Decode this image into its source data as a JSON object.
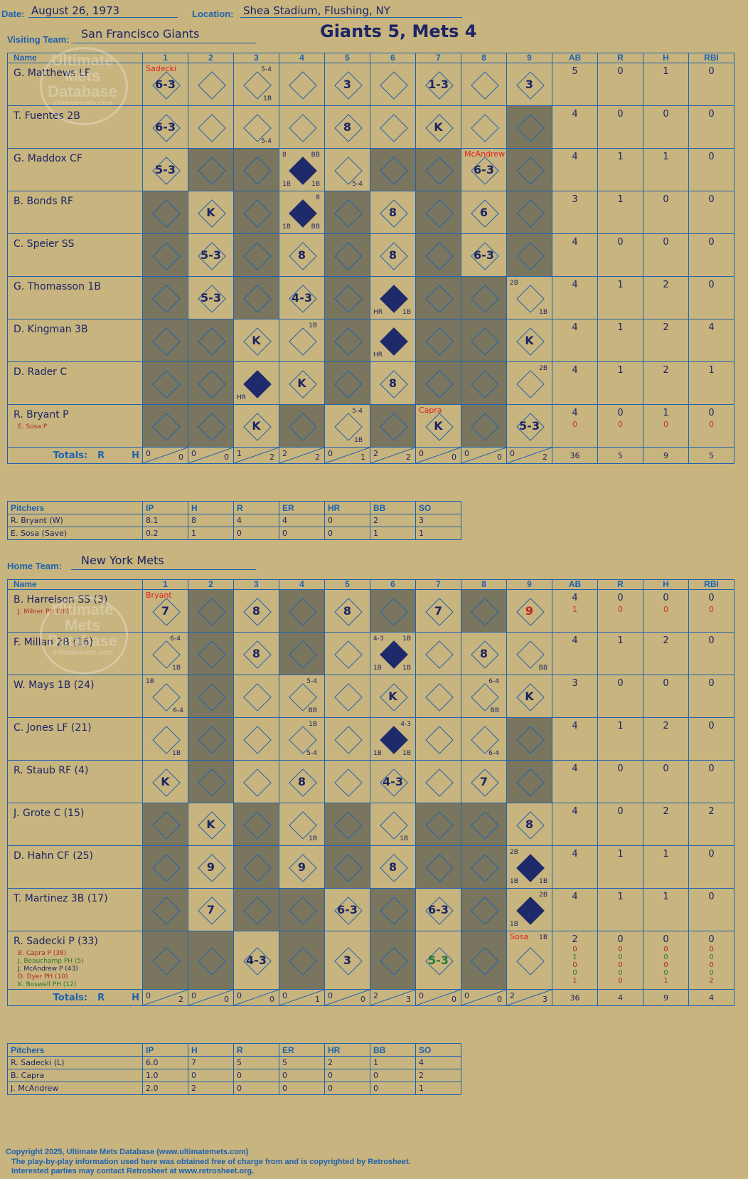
{
  "header": {
    "date_label": "Date:",
    "date": "August 26, 1973",
    "location_label": "Location:",
    "location": "Shea Stadium, Flushing, NY",
    "final_score": "Giants 5, Mets 4"
  },
  "watermark": {
    "line1": "Ultimate",
    "line2": "Mets",
    "line3": "Database",
    "url": "ultimatemets.com"
  },
  "columns": {
    "name": "Name",
    "innings": [
      "1",
      "2",
      "3",
      "4",
      "5",
      "6",
      "7",
      "8",
      "9"
    ],
    "stats": [
      "AB",
      "R",
      "H",
      "RBI"
    ]
  },
  "totals_label": "Totals:",
  "rh": {
    "r": "R",
    "h": "H"
  },
  "pitchers_header": [
    "Pitchers",
    "IP",
    "H",
    "R",
    "ER",
    "HR",
    "BB",
    "SO"
  ],
  "visitors": {
    "label": "Visiting Team:",
    "team": "San Francisco Giants",
    "shade": [
      1,
      0,
      1,
      0,
      1,
      0,
      1,
      0,
      1
    ],
    "batters": [
      {
        "name": "G. Matthews LF",
        "subs": [],
        "cells": [
          {
            "r": "6-3",
            "pn": "Sadecki"
          },
          {},
          {
            "t": "5-4",
            "b": "1B"
          },
          {},
          {
            "r": "3"
          },
          {},
          {
            "r": "1-3"
          },
          {},
          {
            "r": "3"
          }
        ],
        "stats": [
          "5",
          "0",
          "1",
          "0"
        ],
        "stats2": []
      },
      {
        "name": "T. Fuentes 2B",
        "subs": [],
        "cells": [
          {
            "r": "6-3"
          },
          {},
          {
            "b": "5-4"
          },
          {},
          {
            "r": "8"
          },
          {},
          {
            "r": "K"
          },
          {},
          {
            "dark": true
          }
        ],
        "stats": [
          "4",
          "0",
          "0",
          "0"
        ],
        "stats2": []
      },
      {
        "name": "G. Maddox CF",
        "subs": [],
        "cells": [
          {
            "r": "5-3"
          },
          {
            "dark": true
          },
          {
            "dark": true
          },
          {
            "solid": true,
            "tl": "8",
            "tr": "BB",
            "bl": "1B",
            "br": "1B"
          },
          {
            "b": "5-4"
          },
          {
            "dark": true
          },
          {
            "dark": true
          },
          {
            "r": "6-3",
            "pn": "McAndrew"
          },
          {
            "dark": true
          }
        ],
        "stats": [
          "4",
          "1",
          "1",
          "0"
        ],
        "stats2": []
      },
      {
        "name": "B. Bonds RF",
        "subs": [],
        "cells": [
          {
            "dark": true
          },
          {
            "r": "K"
          },
          {
            "dark": true
          },
          {
            "solid": true,
            "tr": "8",
            "bl": "1B",
            "br": "BB"
          },
          {
            "dark": true
          },
          {
            "r": "8"
          },
          {
            "dark": true
          },
          {
            "r": "6"
          },
          {
            "dark": true
          }
        ],
        "stats": [
          "3",
          "1",
          "0",
          "0"
        ],
        "stats2": []
      },
      {
        "name": "C. Speier SS",
        "subs": [],
        "cells": [
          {
            "dark": true
          },
          {
            "r": "5-3"
          },
          {
            "dark": true
          },
          {
            "r": "8"
          },
          {
            "dark": true
          },
          {
            "r": "8"
          },
          {
            "dark": true
          },
          {
            "r": "6-3"
          },
          {
            "dark": true
          }
        ],
        "stats": [
          "4",
          "0",
          "0",
          "0"
        ],
        "stats2": []
      },
      {
        "name": "G. Thomasson 1B",
        "subs": [],
        "cells": [
          {
            "dark": true
          },
          {
            "r": "5-3"
          },
          {
            "dark": true
          },
          {
            "r": "4-3"
          },
          {
            "dark": true
          },
          {
            "solid": true,
            "bl": "HR",
            "br": "1B"
          },
          {
            "dark": true
          },
          {
            "dark": true
          },
          {
            "tl": "2B",
            "br": "1B"
          }
        ],
        "stats": [
          "4",
          "1",
          "2",
          "0"
        ],
        "stats2": []
      },
      {
        "name": "D. Kingman 3B",
        "subs": [],
        "cells": [
          {
            "dark": true
          },
          {
            "dark": true
          },
          {
            "r": "K"
          },
          {
            "t": "1B"
          },
          {
            "dark": true
          },
          {
            "solid": true,
            "bl": "HR"
          },
          {
            "dark": true
          },
          {
            "dark": true
          },
          {
            "r": "K"
          }
        ],
        "stats": [
          "4",
          "1",
          "2",
          "4"
        ],
        "stats2": []
      },
      {
        "name": "D. Rader C",
        "subs": [],
        "cells": [
          {
            "dark": true
          },
          {
            "dark": true
          },
          {
            "solid": true,
            "bl": "HR"
          },
          {
            "r": "K"
          },
          {
            "dark": true
          },
          {
            "r": "8"
          },
          {
            "dark": true
          },
          {
            "dark": true
          },
          {
            "tr": "2B"
          }
        ],
        "stats": [
          "4",
          "1",
          "2",
          "1"
        ],
        "stats2": []
      },
      {
        "name": "R. Bryant P",
        "subs": [
          "E. Sosa P"
        ],
        "cells": [
          {
            "dark": true
          },
          {
            "dark": true
          },
          {
            "r": "K"
          },
          {
            "dark": true
          },
          {
            "t": "5-4",
            "b": "1B"
          },
          {
            "dark": true
          },
          {
            "r": "K",
            "pn": "Capra"
          },
          {
            "dark": true
          },
          {
            "r": "5-3"
          }
        ],
        "stats": [
          "4",
          "0",
          "1",
          "0"
        ],
        "stats2": [
          "0",
          "0",
          "0",
          "0"
        ]
      }
    ],
    "totals": [
      {
        "r": "0",
        "h": "0"
      },
      {
        "r": "0",
        "h": "0"
      },
      {
        "r": "1",
        "h": "2"
      },
      {
        "r": "2",
        "h": "2"
      },
      {
        "r": "0",
        "h": "1"
      },
      {
        "r": "2",
        "h": "2"
      },
      {
        "r": "0",
        "h": "0"
      },
      {
        "r": "0",
        "h": "0"
      },
      {
        "r": "0",
        "h": "2"
      }
    ],
    "total_stats": [
      "36",
      "5",
      "9",
      "5"
    ],
    "pitchers": [
      [
        "R. Bryant (W)",
        "8.1",
        "8",
        "4",
        "4",
        "0",
        "2",
        "3"
      ],
      [
        "E. Sosa (Save)",
        "0.2",
        "1",
        "0",
        "0",
        "0",
        "1",
        "1"
      ]
    ]
  },
  "home": {
    "label": "Home Team:",
    "team": "New York Mets",
    "shade": [
      0,
      1,
      0,
      1,
      0,
      1,
      0,
      1,
      0
    ],
    "batters": [
      {
        "name": "B. Harrelson SS (3)",
        "subs": [
          "J. Milner PH (28)"
        ],
        "cells": [
          {
            "r": "7",
            "pn": "Bryant"
          },
          {},
          {
            "r": "8"
          },
          {},
          {
            "r": "8"
          },
          {},
          {
            "r": "7"
          },
          {},
          {
            "r": "9",
            "red": true
          }
        ],
        "stats": [
          "4",
          "0",
          "0",
          "0"
        ],
        "stats2": [
          "1",
          "0",
          "0",
          "0"
        ]
      },
      {
        "name": "F. Millan 2B (16)",
        "subs": [],
        "cells": [
          {
            "t": "6-4",
            "b": "1B"
          },
          {},
          {
            "r": "8"
          },
          {},
          {},
          {
            "solid": true,
            "tl": "4-3",
            "tr": "1B",
            "bl": "1B",
            "br": "1B"
          },
          {},
          {
            "r": "8"
          },
          {
            "br": "BB"
          }
        ],
        "stats": [
          "4",
          "1",
          "2",
          "0"
        ],
        "stats2": []
      },
      {
        "name": "W. Mays 1B (24)",
        "subs": [],
        "cells": [
          {
            "tl": "1B",
            "br": "6-4"
          },
          {},
          {},
          {
            "t": "5-4",
            "b": "BB"
          },
          {},
          {
            "r": "K"
          },
          {},
          {
            "t": "6-4",
            "b": "BB"
          },
          {
            "r": "K"
          }
        ],
        "stats": [
          "3",
          "0",
          "0",
          "0"
        ],
        "stats2": []
      },
      {
        "name": "C. Jones LF (21)",
        "subs": [],
        "cells": [
          {
            "b": "1B"
          },
          {},
          {},
          {
            "t": "1B",
            "b": "5-4"
          },
          {},
          {
            "solid": true,
            "tr": "4-3",
            "bl": "1B",
            "br": "1B"
          },
          {},
          {
            "b": "6-4"
          },
          {
            "dark": true
          }
        ],
        "stats": [
          "4",
          "1",
          "2",
          "0"
        ],
        "stats2": []
      },
      {
        "name": "R. Staub RF (4)",
        "subs": [],
        "cells": [
          {
            "r": "K"
          },
          {},
          {},
          {
            "r": "8"
          },
          {},
          {
            "r": "4-3"
          },
          {},
          {
            "r": "7"
          },
          {
            "dark": true
          }
        ],
        "stats": [
          "4",
          "0",
          "0",
          "0"
        ],
        "stats2": []
      },
      {
        "name": "J. Grote C (15)",
        "subs": [],
        "cells": [
          {
            "dark": true
          },
          {
            "r": "K"
          },
          {
            "dark": true
          },
          {
            "b": "1B"
          },
          {
            "dark": true
          },
          {
            "b": "1B"
          },
          {
            "dark": true
          },
          {
            "dark": true
          },
          {
            "r": "8"
          }
        ],
        "stats": [
          "4",
          "0",
          "2",
          "2"
        ],
        "stats2": []
      },
      {
        "name": "D. Hahn CF (25)",
        "subs": [],
        "cells": [
          {
            "dark": true
          },
          {
            "r": "9"
          },
          {
            "dark": true
          },
          {
            "r": "9"
          },
          {
            "dark": true
          },
          {
            "r": "8"
          },
          {
            "dark": true
          },
          {
            "dark": true
          },
          {
            "solid": true,
            "tl": "2B",
            "bl": "1B",
            "br": "1B"
          }
        ],
        "stats": [
          "4",
          "1",
          "1",
          "0"
        ],
        "stats2": []
      },
      {
        "name": "T. Martinez 3B (17)",
        "subs": [],
        "cells": [
          {
            "dark": true
          },
          {
            "r": "7"
          },
          {
            "dark": true
          },
          {
            "dark": true
          },
          {
            "r": "6-3"
          },
          {
            "dark": true
          },
          {
            "r": "6-3"
          },
          {
            "dark": true
          },
          {
            "solid": true,
            "tr": "2B",
            "bl": "1B"
          }
        ],
        "stats": [
          "4",
          "1",
          "1",
          "0"
        ],
        "stats2": []
      },
      {
        "name": "R. Sadecki P (33)",
        "subs": [
          "B. Capra P (38)",
          "J. Beauchamp PH (5)",
          "J. McAndrew P (43)",
          "D. Dyer PH (10)",
          "K. Boswell PH (12)"
        ],
        "cells": [
          {
            "dark": true
          },
          {
            "dark": true
          },
          {
            "r": "4-3"
          },
          {
            "dark": true
          },
          {
            "r": "3"
          },
          {
            "dark": true
          },
          {
            "r": "5-3",
            "green": true
          },
          {
            "dark": true
          },
          {
            "tr": "1B",
            "pn": "Sosa"
          }
        ],
        "stats": [
          "2",
          "0",
          "0",
          "0"
        ],
        "stats2": [
          "0",
          "1",
          "0",
          "0",
          "1"
        ]
      }
    ],
    "sadecki_extra": [
      [
        "0",
        "0",
        "0",
        "0"
      ],
      [
        "1",
        "0",
        "0",
        "0"
      ],
      [
        "0",
        "0",
        "0",
        "0"
      ],
      [
        "0",
        "0",
        "0",
        "0"
      ],
      [
        "1",
        "0",
        "1",
        "2"
      ]
    ],
    "totals": [
      {
        "r": "0",
        "h": "2"
      },
      {
        "r": "0",
        "h": "0"
      },
      {
        "r": "0",
        "h": "0"
      },
      {
        "r": "0",
        "h": "1"
      },
      {
        "r": "0",
        "h": "0"
      },
      {
        "r": "2",
        "h": "3"
      },
      {
        "r": "0",
        "h": "0"
      },
      {
        "r": "0",
        "h": "0"
      },
      {
        "r": "2",
        "h": "3"
      }
    ],
    "total_stats": [
      "36",
      "4",
      "9",
      "4"
    ],
    "pitchers": [
      [
        "R. Sadecki (L)",
        "6.0",
        "7",
        "5",
        "5",
        "2",
        "1",
        "4"
      ],
      [
        "B. Capra",
        "1.0",
        "0",
        "0",
        "0",
        "0",
        "0",
        "2"
      ],
      [
        "J. McAndrew",
        "2.0",
        "2",
        "0",
        "0",
        "0",
        "0",
        "1"
      ]
    ]
  },
  "footer": {
    "line1": "Copyright 2025, Ultimate Mets Database (www.ultimatemets.com)",
    "line2": "The play-by-play information used here was obtained free of charge from and is copyrighted by Retrosheet.",
    "line3": "Interested parties may contact Retrosheet at www.retrosheet.org."
  }
}
